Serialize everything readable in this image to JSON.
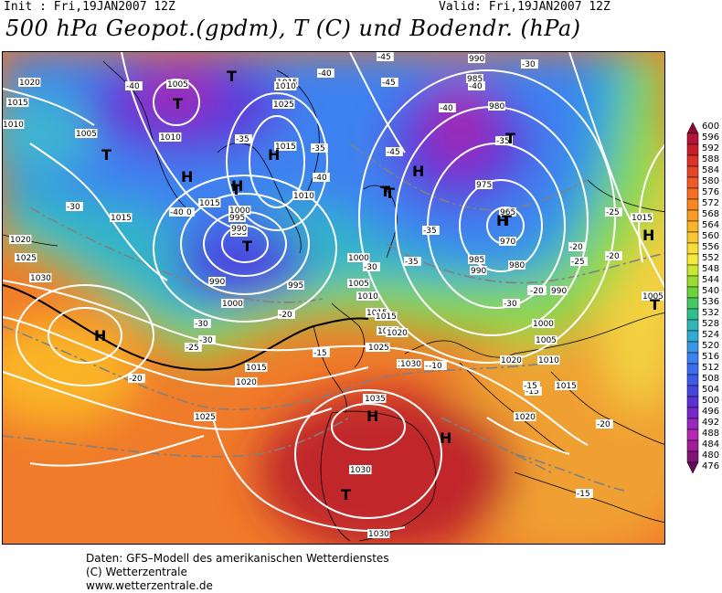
{
  "header": {
    "init": "Init : Fri,19JAN2007 12Z",
    "valid": "Valid: Fri,19JAN2007 12Z",
    "title": "500 hPa Geopot.(gpdm), T (C) und Bodendr. (hPa)"
  },
  "legend": {
    "values": [
      "600",
      "596",
      "592",
      "588",
      "584",
      "580",
      "576",
      "572",
      "568",
      "564",
      "560",
      "556",
      "552",
      "548",
      "544",
      "540",
      "536",
      "532",
      "528",
      "524",
      "520",
      "516",
      "512",
      "508",
      "504",
      "500",
      "496",
      "492",
      "488",
      "484",
      "480",
      "476"
    ],
    "colors": [
      "#8c0a32",
      "#b4143c",
      "#c81e28",
      "#dc3228",
      "#e64628",
      "#f05a28",
      "#f56e23",
      "#fa871e",
      "#fa9b23",
      "#fab428",
      "#fac832",
      "#fadc37",
      "#f5eb3c",
      "#c8e632",
      "#9bdc32",
      "#6ed23c",
      "#46c864",
      "#32be8c",
      "#32b4b4",
      "#32aad2",
      "#3c96e6",
      "#3c82f0",
      "#3c6ef0",
      "#3c5ae6",
      "#4646dc",
      "#5a32d2",
      "#7828c8",
      "#9628be",
      "#b428b4",
      "#a01e96",
      "#821478",
      "#640a5a"
    ]
  },
  "map": {
    "pressure_labels": [
      {
        "text": "1020"
      },
      {
        "text": "1015"
      },
      {
        "text": "1010"
      },
      {
        "text": "1005"
      },
      {
        "text": "1005"
      },
      {
        "text": "1010"
      },
      {
        "text": "1015"
      },
      {
        "text": "1010"
      },
      {
        "text": "1015"
      },
      {
        "text": "1020"
      },
      {
        "text": "1025"
      },
      {
        "text": "1030"
      },
      {
        "text": "1015"
      },
      {
        "text": "1010"
      },
      {
        "text": "1025"
      },
      {
        "text": "1000"
      },
      {
        "text": "995"
      },
      {
        "text": "990"
      },
      {
        "text": "985"
      },
      {
        "text": "990"
      },
      {
        "text": "995"
      },
      {
        "text": "1000"
      },
      {
        "text": "1015"
      },
      {
        "text": "1020"
      },
      {
        "text": "1025"
      },
      {
        "text": "1030"
      },
      {
        "text": "1035"
      },
      {
        "text": "1030"
      },
      {
        "text": "1025"
      },
      {
        "text": "1020"
      },
      {
        "text": "1015"
      },
      {
        "text": "1000"
      },
      {
        "text": "1005"
      },
      {
        "text": "1010"
      },
      {
        "text": "1015"
      },
      {
        "text": "1020"
      },
      {
        "text": "1025"
      },
      {
        "text": "1030"
      },
      {
        "text": "1035"
      },
      {
        "text": "1030"
      },
      {
        "text": "1030"
      },
      {
        "text": "1020"
      },
      {
        "text": "990"
      },
      {
        "text": "985"
      },
      {
        "text": "980"
      },
      {
        "text": "975"
      },
      {
        "text": "970"
      },
      {
        "text": "965"
      },
      {
        "text": "980"
      },
      {
        "text": "985"
      },
      {
        "text": "990"
      },
      {
        "text": "995"
      },
      {
        "text": "1000"
      },
      {
        "text": "1005"
      },
      {
        "text": "1010"
      },
      {
        "text": "1015"
      },
      {
        "text": "1020"
      },
      {
        "text": "1015"
      },
      {
        "text": "1005"
      },
      {
        "text": "990"
      },
      {
        "text": "1015"
      }
    ],
    "temp_labels": [
      {
        "text": "-40"
      },
      {
        "text": "-35"
      },
      {
        "text": "-35"
      },
      {
        "text": "-40"
      },
      {
        "text": "-40"
      },
      {
        "text": "-30"
      },
      {
        "text": "-40"
      },
      {
        "text": "-45"
      },
      {
        "text": "-45"
      },
      {
        "text": "-40"
      },
      {
        "text": "-40"
      },
      {
        "text": "-45"
      },
      {
        "text": "-40"
      },
      {
        "text": "-35"
      },
      {
        "text": "-30"
      },
      {
        "text": "-35"
      },
      {
        "text": "-35"
      },
      {
        "text": "-30"
      },
      {
        "text": "-30"
      },
      {
        "text": "-20"
      },
      {
        "text": "-25"
      },
      {
        "text": "-30"
      },
      {
        "text": "-20"
      },
      {
        "text": "-15"
      },
      {
        "text": "-15"
      },
      {
        "text": "-10"
      },
      {
        "text": "-15"
      },
      {
        "text": "-20"
      },
      {
        "text": "-30"
      },
      {
        "text": "-25"
      },
      {
        "text": "-20"
      },
      {
        "text": "-25"
      },
      {
        "text": "-20"
      },
      {
        "text": "-21"
      },
      {
        "text": "-20"
      },
      {
        "text": "-15"
      },
      {
        "text": "-15"
      },
      {
        "text": "-10"
      },
      {
        "text": "-35"
      }
    ],
    "centers": [
      {
        "text": "T"
      },
      {
        "text": "T"
      },
      {
        "text": "T"
      },
      {
        "text": "H"
      },
      {
        "text": "H"
      },
      {
        "text": "T"
      },
      {
        "text": "H"
      },
      {
        "text": "T"
      },
      {
        "text": "H"
      },
      {
        "text": "T"
      },
      {
        "text": "T"
      },
      {
        "text": "T"
      },
      {
        "text": "H"
      },
      {
        "text": "H"
      },
      {
        "text": "T"
      },
      {
        "text": "H"
      },
      {
        "text": "T"
      },
      {
        "text": "H"
      },
      {
        "text": "H"
      },
      {
        "text": "T"
      }
    ]
  },
  "footer": {
    "line1": "Daten: GFS–Modell des amerikanischen Wetterdienstes",
    "line2": "(C) Wetterzentrale",
    "line3": "www.wetterzentrale.de"
  }
}
